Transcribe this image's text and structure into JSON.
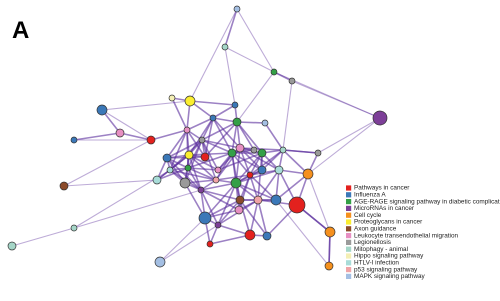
{
  "panel_label": "A",
  "legend": [
    {
      "label": "Pathways in cancer",
      "color": "#e3211e"
    },
    {
      "label": "Influenza A",
      "color": "#3b78b8"
    },
    {
      "label": "AGE-RAGE signaling pathway in diabetic complication",
      "color": "#33a047"
    },
    {
      "label": "MicroRNAs in cancer",
      "color": "#7d3f98"
    },
    {
      "label": "Cell cycle",
      "color": "#f5901e"
    },
    {
      "label": "Proteoglycans in cancer",
      "color": "#fbee31"
    },
    {
      "label": "Axon guidance",
      "color": "#8c4b2a"
    },
    {
      "label": "Leukocyte transendothelial migration",
      "color": "#e78fc2"
    },
    {
      "label": "Legionellosis",
      "color": "#9a9a9a"
    },
    {
      "label": "Mitophagy - animal",
      "color": "#a5d6c8"
    },
    {
      "label": "Hippo signaling pathway",
      "color": "#f4efb4"
    },
    {
      "label": "HTLV-I infection",
      "color": "#a8dcd8"
    },
    {
      "label": "p53 signaling pathway",
      "color": "#f0a3a6"
    },
    {
      "label": "MAPK signaling pathway",
      "color": "#a4bfe3"
    }
  ]
}
